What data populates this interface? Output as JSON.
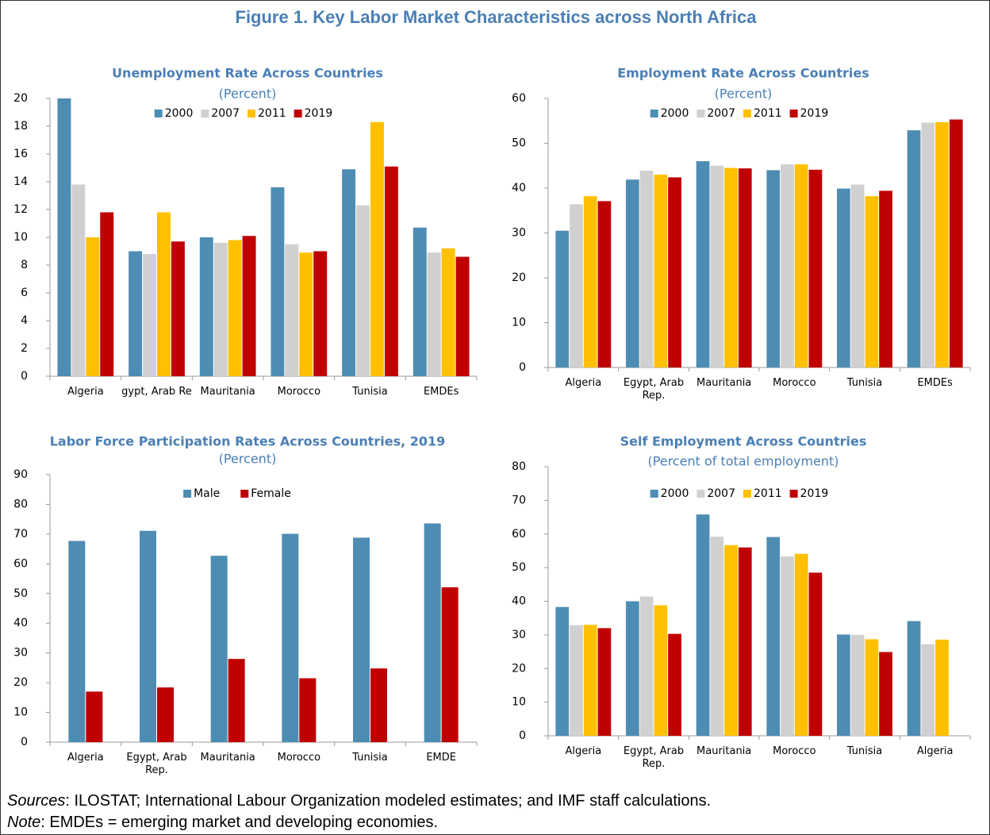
{
  "title": "Figure 1. Key Labor Market Characteristics across North Africa",
  "chart_data": [
    {
      "type": "bar",
      "title": "Unemployment Rate Across Countries",
      "subtitle": "(Percent)",
      "legend": "top",
      "categories": [
        "Algeria",
        "Egypt, Arab Rep",
        "Mauritania",
        "Morocco",
        "Tunisia",
        "EMDEs"
      ],
      "series": [
        {
          "name": "2000",
          "color": "#4e8db3",
          "values": [
            20.0,
            9.0,
            10.0,
            13.6,
            14.9,
            10.7
          ]
        },
        {
          "name": "2007",
          "color": "#d0d0d0",
          "values": [
            13.8,
            8.8,
            9.6,
            9.5,
            12.3,
            8.9
          ]
        },
        {
          "name": "2011",
          "color": "#ffc000",
          "values": [
            10.0,
            11.8,
            9.8,
            8.9,
            18.3,
            9.2
          ]
        },
        {
          "name": "2019",
          "color": "#c00000",
          "values": [
            11.8,
            9.7,
            10.1,
            9.0,
            15.1,
            8.6
          ]
        }
      ],
      "ylim": [
        0,
        20
      ],
      "yticks": [
        0,
        2,
        4,
        6,
        8,
        10,
        12,
        14,
        16,
        18,
        20
      ]
    },
    {
      "type": "bar",
      "title": "Employment Rate Across Countries",
      "subtitle": "(Percent)",
      "legend": "top",
      "categories": [
        "Algeria",
        "Egypt, Arab Rep.",
        "Mauritania",
        "Morocco",
        "Tunisia",
        "EMDEs"
      ],
      "series": [
        {
          "name": "2000",
          "color": "#4e8db3",
          "values": [
            30.5,
            41.9,
            46.0,
            44.0,
            39.9,
            52.9
          ]
        },
        {
          "name": "2007",
          "color": "#d0d0d0",
          "values": [
            36.4,
            43.9,
            45.0,
            45.3,
            40.8,
            54.6
          ]
        },
        {
          "name": "2011",
          "color": "#ffc000",
          "values": [
            38.2,
            43.0,
            44.5,
            45.3,
            38.2,
            54.7
          ]
        },
        {
          "name": "2019",
          "color": "#c00000",
          "values": [
            37.1,
            42.4,
            44.4,
            44.1,
            39.4,
            55.3
          ]
        }
      ],
      "ylim": [
        0,
        60
      ],
      "yticks": [
        0,
        10,
        20,
        30,
        40,
        50,
        60
      ]
    },
    {
      "type": "bar",
      "title": "Labor Force Participation Rates Across Countries, 2019",
      "subtitle": "(Percent)",
      "legend": "top",
      "categories": [
        "Algeria",
        "Egypt, Arab Rep.",
        "Mauritania",
        "Morocco",
        "Tunisia",
        "EMDE"
      ],
      "series": [
        {
          "name": "Male",
          "color": "#4e8db3",
          "values": [
            67.7,
            71.1,
            62.7,
            70.1,
            68.8,
            73.6
          ]
        },
        {
          "name": "Female",
          "color": "#c00000",
          "values": [
            17.0,
            18.4,
            28.0,
            21.5,
            24.8,
            52.1
          ]
        }
      ],
      "ylim": [
        0,
        90
      ],
      "yticks": [
        0,
        10,
        20,
        30,
        40,
        50,
        60,
        70,
        80,
        90
      ]
    },
    {
      "type": "bar",
      "title": "Self Employment Across Countries",
      "subtitle": "(Percent of total employment)",
      "legend": "top",
      "categories": [
        "Algeria",
        "Egypt, Arab Rep.",
        "Mauritania",
        "Morocco",
        "Tunisia",
        "Algeria"
      ],
      "series": [
        {
          "name": "2000",
          "color": "#4e8db3",
          "values": [
            38.3,
            40.0,
            65.8,
            59.1,
            30.1,
            34.1
          ]
        },
        {
          "name": "2007",
          "color": "#d0d0d0",
          "values": [
            32.9,
            41.4,
            59.2,
            53.3,
            30.0,
            27.2
          ]
        },
        {
          "name": "2011",
          "color": "#ffc000",
          "values": [
            33.0,
            38.8,
            56.7,
            54.1,
            28.7,
            28.6
          ]
        },
        {
          "name": "2019",
          "color": "#c00000",
          "values": [
            32.0,
            30.3,
            56.0,
            48.5,
            24.9,
            null
          ]
        }
      ],
      "ylim": [
        0,
        80
      ],
      "yticks": [
        0,
        10,
        20,
        30,
        40,
        50,
        60,
        70,
        80
      ]
    }
  ],
  "notes": [
    {
      "label": "Sources",
      "text": ": ILOSTAT; International Labour Organization modeled estimates; and IMF staff calculations."
    },
    {
      "label": "Note",
      "text": ": EMDEs = emerging market and developing economies."
    }
  ]
}
